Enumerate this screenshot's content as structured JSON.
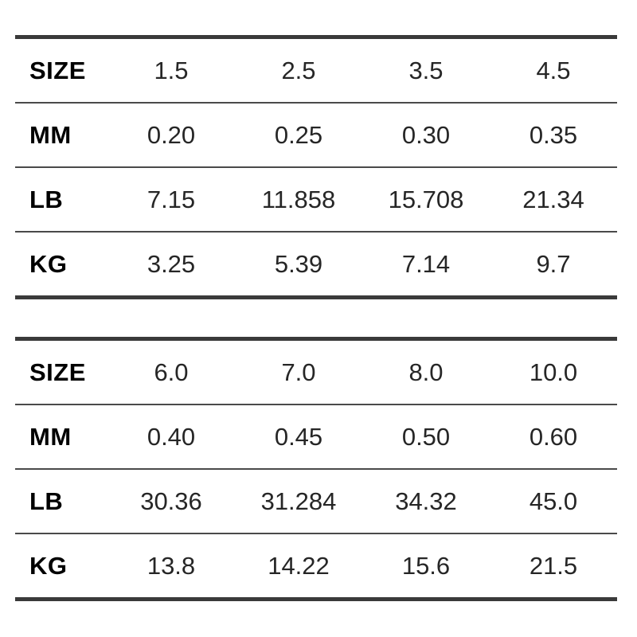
{
  "colors": {
    "background": "#ffffff",
    "label_text": "#000000",
    "value_text": "#262626",
    "thick_rule": "#3a3a3a",
    "thin_rule": "#4a4a4a"
  },
  "tables": [
    {
      "rows": [
        {
          "label": "SIZE",
          "values": [
            "1.5",
            "2.5",
            "3.5",
            "4.5"
          ]
        },
        {
          "label": "MM",
          "values": [
            "0.20",
            "0.25",
            "0.30",
            "0.35"
          ]
        },
        {
          "label": "LB",
          "values": [
            "7.15",
            "11.858",
            "15.708",
            "21.34"
          ]
        },
        {
          "label": "KG",
          "values": [
            "3.25",
            "5.39",
            "7.14",
            "9.7"
          ]
        }
      ]
    },
    {
      "rows": [
        {
          "label": "SIZE",
          "values": [
            "6.0",
            "7.0",
            "8.0",
            "10.0"
          ]
        },
        {
          "label": "MM",
          "values": [
            "0.40",
            "0.45",
            "0.50",
            "0.60"
          ]
        },
        {
          "label": "LB",
          "values": [
            "30.36",
            "31.284",
            "34.32",
            "45.0"
          ]
        },
        {
          "label": "KG",
          "values": [
            "13.8",
            "14.22",
            "15.6",
            "21.5"
          ]
        }
      ]
    }
  ],
  "chart_data": [
    {
      "type": "table",
      "title": "Line specification table (sizes 1.5-4.5)",
      "row_headers": [
        "SIZE",
        "MM",
        "LB",
        "KG"
      ],
      "rows": [
        [
          "SIZE",
          "1.5",
          "2.5",
          "3.5",
          "4.5"
        ],
        [
          "MM",
          "0.20",
          "0.25",
          "0.30",
          "0.35"
        ],
        [
          "LB",
          "7.15",
          "11.858",
          "15.708",
          "21.34"
        ],
        [
          "KG",
          "3.25",
          "5.39",
          "7.14",
          "9.7"
        ]
      ]
    },
    {
      "type": "table",
      "title": "Line specification table (sizes 6.0-10.0)",
      "row_headers": [
        "SIZE",
        "MM",
        "LB",
        "KG"
      ],
      "rows": [
        [
          "SIZE",
          "6.0",
          "7.0",
          "8.0",
          "10.0"
        ],
        [
          "MM",
          "0.40",
          "0.45",
          "0.50",
          "0.60"
        ],
        [
          "LB",
          "30.36",
          "31.284",
          "34.32",
          "45.0"
        ],
        [
          "KG",
          "13.8",
          "14.22",
          "15.6",
          "21.5"
        ]
      ]
    }
  ]
}
